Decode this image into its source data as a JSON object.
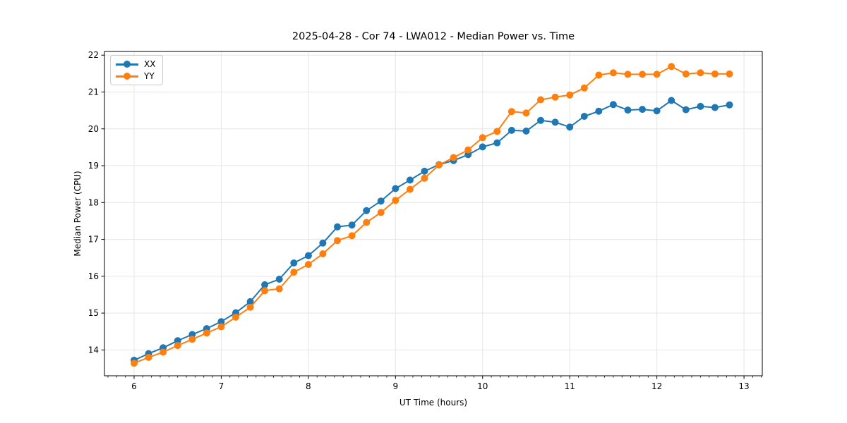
{
  "chart_data": {
    "type": "line",
    "title": "2025-04-28 - Cor 74 - LWA012 - Median Power vs. Time",
    "xlabel": "UT Time (hours)",
    "ylabel": "Median Power (CPU)",
    "xlim": [
      5.66,
      13.21
    ],
    "ylim": [
      13.3,
      22.1
    ],
    "xticks": [
      6,
      7,
      8,
      9,
      10,
      11,
      12,
      13
    ],
    "yticks": [
      14,
      15,
      16,
      17,
      18,
      19,
      20,
      21,
      22
    ],
    "x_minor_step": 0.1,
    "grid": true,
    "grid_color": "#e5e5e5",
    "legend_position": "upper left",
    "x": [
      6,
      6.1667,
      6.3333,
      6.5,
      6.6667,
      6.8333,
      7,
      7.1667,
      7.3333,
      7.5,
      7.6667,
      7.8333,
      8,
      8.1667,
      8.3333,
      8.5,
      8.6667,
      8.8333,
      9,
      9.1667,
      9.3333,
      9.5,
      9.6667,
      9.8333,
      10,
      10.1667,
      10.3333,
      10.5,
      10.6667,
      10.8333,
      11,
      11.1667,
      11.3333,
      11.5,
      11.6667,
      11.8333,
      12,
      12.1667,
      12.3333,
      12.5,
      12.6667,
      12.8333
    ],
    "series": [
      {
        "name": "XX",
        "color": "#1f77b4",
        "values": [
          13.72,
          13.9,
          14.06,
          14.25,
          14.42,
          14.58,
          14.77,
          15.01,
          15.31,
          15.77,
          15.92,
          16.36,
          16.56,
          16.9,
          17.34,
          17.39,
          17.78,
          18.04,
          18.38,
          18.61,
          18.85,
          19.03,
          19.14,
          19.3,
          19.51,
          19.62,
          19.96,
          19.94,
          20.23,
          20.18,
          20.05,
          20.34,
          20.48,
          20.66,
          20.51,
          20.53,
          20.49,
          20.77,
          20.52,
          20.61,
          20.58,
          20.65
        ]
      },
      {
        "name": "YY",
        "color": "#ff7f0e",
        "values": [
          13.64,
          13.8,
          13.94,
          14.12,
          14.29,
          14.46,
          14.63,
          14.89,
          15.16,
          15.61,
          15.66,
          16.11,
          16.32,
          16.61,
          16.97,
          17.1,
          17.46,
          17.73,
          18.06,
          18.36,
          18.66,
          19.02,
          19.22,
          19.43,
          19.76,
          19.93,
          20.47,
          20.43,
          20.79,
          20.86,
          20.92,
          21.11,
          21.46,
          21.52,
          21.48,
          21.48,
          21.48,
          21.69,
          21.49,
          21.52,
          21.49,
          21.49
        ]
      }
    ]
  }
}
